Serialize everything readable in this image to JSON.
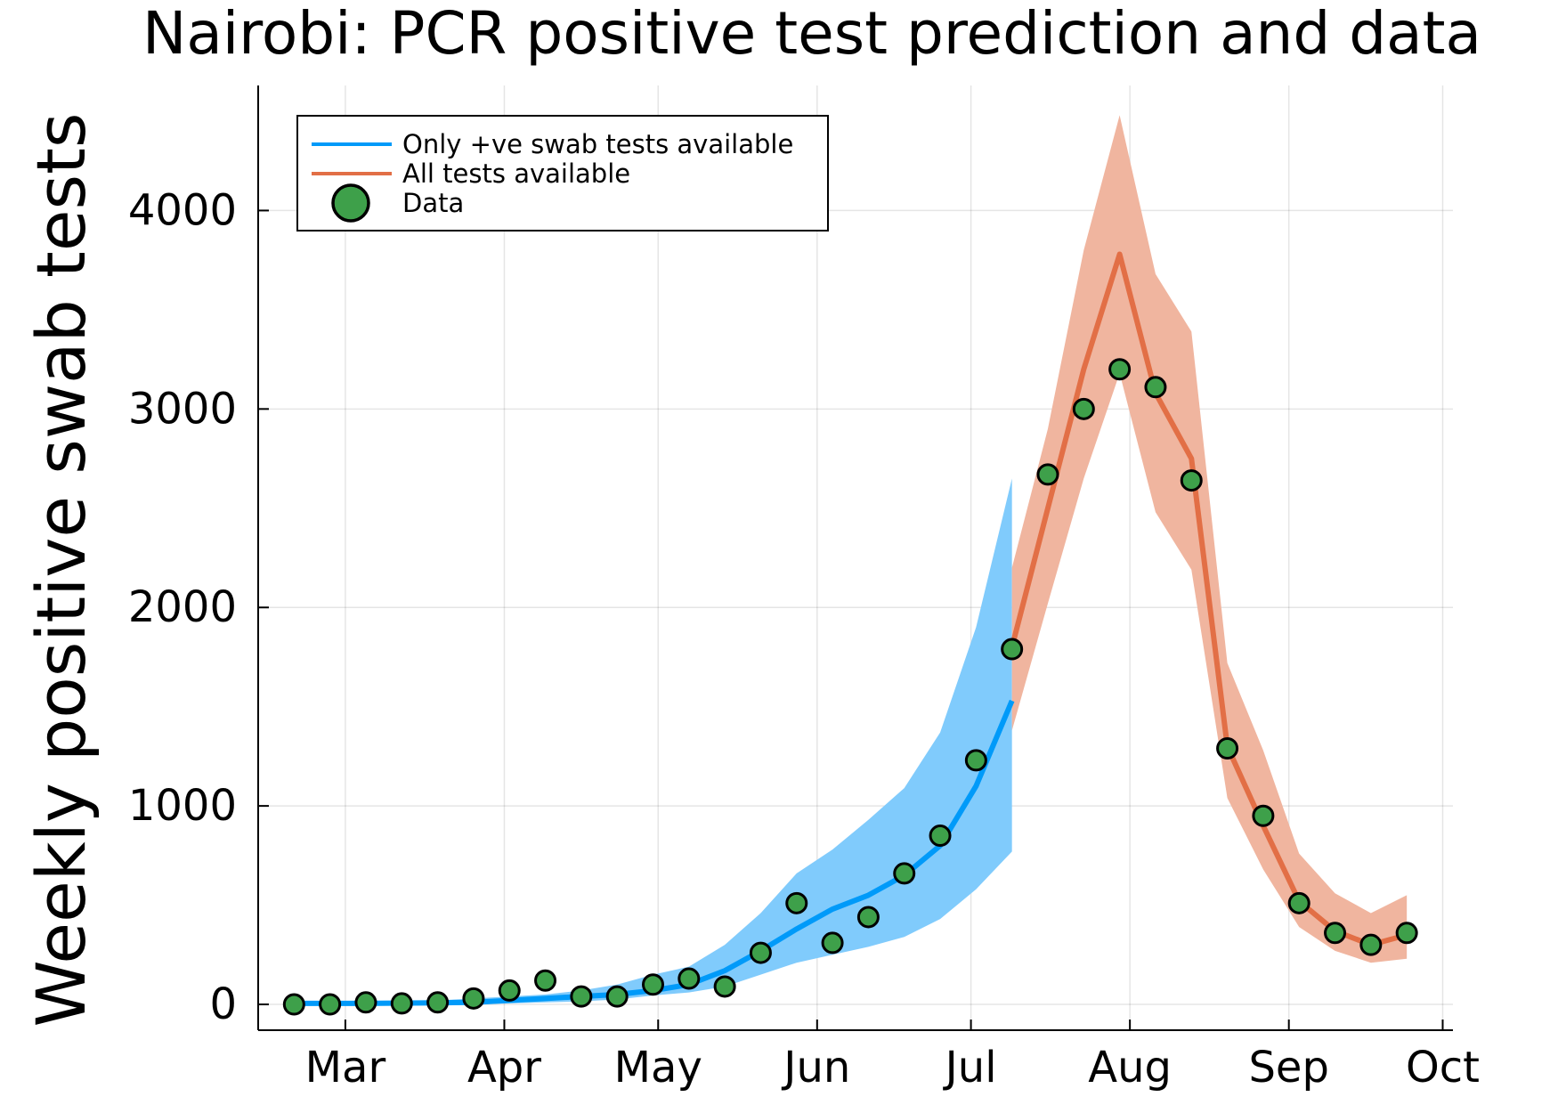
{
  "chart_data": {
    "type": "line",
    "title": "Nairobi: PCR positive test prediction and data",
    "xlabel": "",
    "ylabel": "Weekly positive swab tests",
    "x_ticks": [
      "Mar",
      "Apr",
      "May",
      "Jun",
      "Jul",
      "Aug",
      "Sep",
      "Oct"
    ],
    "y_ticks": [
      "0",
      "1000",
      "2000",
      "3000",
      "4000"
    ],
    "ylim": [
      -130,
      4630
    ],
    "xlim": [
      "2020-02-13",
      "2020-10-03"
    ],
    "grid": true,
    "legend_position": "top-left",
    "series": [
      {
        "name": "Only +ve swab tests available",
        "color": "#009af9",
        "band_color": "#80cbfc",
        "x": [
          "2020-02-20",
          "2020-03-05",
          "2020-03-19",
          "2020-03-26",
          "2020-04-02",
          "2020-04-09",
          "2020-04-16",
          "2020-04-23",
          "2020-04-30",
          "2020-05-07",
          "2020-05-14",
          "2020-05-21",
          "2020-05-28",
          "2020-06-04",
          "2020-06-11",
          "2020-06-18",
          "2020-06-25",
          "2020-07-02",
          "2020-07-09"
        ],
        "values": [
          5,
          5,
          8,
          10,
          20,
          30,
          40,
          50,
          70,
          100,
          170,
          270,
          380,
          480,
          550,
          650,
          800,
          1100,
          1530
        ],
        "lower": [
          0,
          0,
          0,
          0,
          5,
          10,
          15,
          25,
          45,
          60,
          90,
          150,
          210,
          250,
          290,
          340,
          430,
          580,
          770
        ],
        "upper": [
          10,
          15,
          20,
          30,
          40,
          50,
          70,
          100,
          150,
          190,
          300,
          460,
          660,
          780,
          930,
          1090,
          1370,
          1900,
          2650
        ]
      },
      {
        "name": "All tests available",
        "color": "#e26f46",
        "band_color": "#f0b59f",
        "x": [
          "2020-07-09",
          "2020-07-16",
          "2020-07-23",
          "2020-07-30",
          "2020-08-06",
          "2020-08-13",
          "2020-08-20",
          "2020-08-27",
          "2020-09-03",
          "2020-09-10",
          "2020-09-17",
          "2020-09-24"
        ],
        "values": [
          1800,
          2500,
          3200,
          3780,
          3080,
          2750,
          1300,
          900,
          520,
          370,
          300,
          350
        ],
        "lower": [
          1380,
          2020,
          2650,
          3180,
          2480,
          2190,
          1040,
          680,
          390,
          270,
          210,
          230
        ],
        "upper": [
          2200,
          2900,
          3800,
          4480,
          3680,
          3390,
          1720,
          1280,
          760,
          560,
          460,
          550
        ]
      }
    ],
    "data_points": {
      "name": "Data",
      "color": "#3ea04a",
      "x": [
        "2020-02-20",
        "2020-02-27",
        "2020-03-05",
        "2020-03-12",
        "2020-03-19",
        "2020-03-26",
        "2020-04-02",
        "2020-04-09",
        "2020-04-16",
        "2020-04-23",
        "2020-04-30",
        "2020-05-07",
        "2020-05-14",
        "2020-05-21",
        "2020-05-28",
        "2020-06-04",
        "2020-06-11",
        "2020-06-18",
        "2020-06-25",
        "2020-07-02",
        "2020-07-09",
        "2020-07-16",
        "2020-07-23",
        "2020-07-30",
        "2020-08-06",
        "2020-08-13",
        "2020-08-20",
        "2020-08-27",
        "2020-09-03",
        "2020-09-10",
        "2020-09-17",
        "2020-09-24"
      ],
      "values": [
        0,
        0,
        10,
        5,
        10,
        30,
        70,
        120,
        40,
        40,
        100,
        130,
        90,
        260,
        510,
        310,
        440,
        660,
        850,
        1230,
        1790,
        2670,
        3000,
        3200,
        3110,
        2640,
        1290,
        950,
        510,
        360,
        300,
        360
      ]
    }
  }
}
